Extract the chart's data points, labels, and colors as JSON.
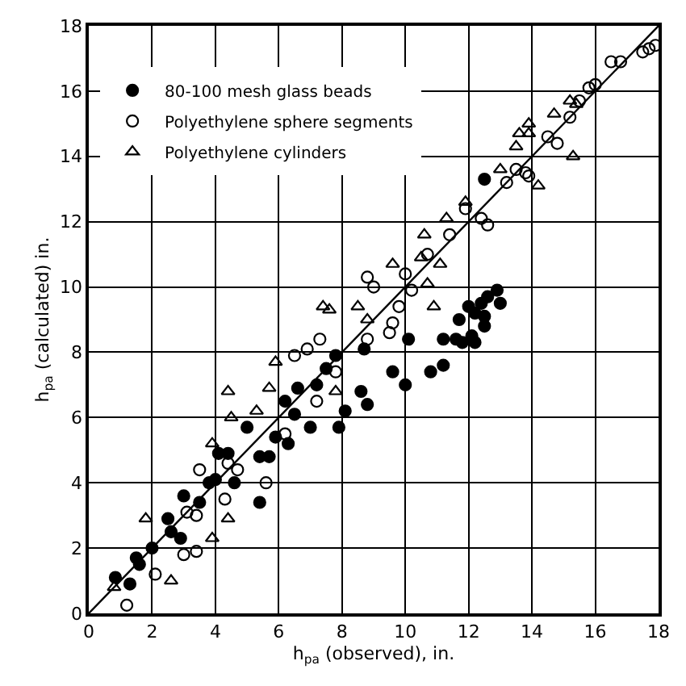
{
  "chart_data": {
    "type": "scatter",
    "xlabel": "h$_{pa}$ (observed), in.",
    "ylabel": "h$_{pa}$ (calculated) in.",
    "xlim": [
      0,
      18
    ],
    "ylim": [
      0,
      18
    ],
    "xticks": [
      0,
      2,
      4,
      6,
      8,
      10,
      12,
      14,
      16,
      18
    ],
    "yticks": [
      0,
      2,
      4,
      6,
      8,
      10,
      12,
      14,
      16,
      18
    ],
    "grid": true,
    "legend": "top left",
    "series": [
      {
        "name": "80-100 mesh glass beads",
        "color": "#000000",
        "marker": "circle",
        "x": [
          0.84,
          1.3,
          1.5,
          1.6,
          2.0,
          2.5,
          2.6,
          2.9,
          3.0,
          3.5,
          3.8,
          4.0,
          4.1,
          4.4,
          4.6,
          5.0,
          5.4,
          5.4,
          5.7,
          5.9,
          6.2,
          6.3,
          6.5,
          6.6,
          7.0,
          7.2,
          7.5,
          7.8,
          7.9,
          8.1,
          8.6,
          8.8,
          8.7,
          9.6,
          10.0,
          10.1,
          10.8,
          11.2,
          11.2,
          11.8,
          12.2,
          12.5,
          11.7,
          12.0,
          12.2,
          12.4,
          12.6,
          12.9,
          13.0,
          12.5,
          12.1,
          11.6,
          12.5
        ],
        "values": [
          1.1,
          0.9,
          1.7,
          1.5,
          2.0,
          2.9,
          2.5,
          2.3,
          3.6,
          3.4,
          4.0,
          4.1,
          4.9,
          4.9,
          4.0,
          5.7,
          4.8,
          3.4,
          4.8,
          5.4,
          6.5,
          5.2,
          6.1,
          6.9,
          5.7,
          7.0,
          7.5,
          7.9,
          5.7,
          6.2,
          6.8,
          6.4,
          8.1,
          7.4,
          7.0,
          8.4,
          7.4,
          7.6,
          8.4,
          8.3,
          8.3,
          8.8,
          9.0,
          9.4,
          9.2,
          9.5,
          9.7,
          9.9,
          9.5,
          9.1,
          8.5,
          8.4,
          13.3
        ]
      },
      {
        "name": "Polyethylene sphere segments",
        "color": "#000000",
        "marker": "circle-open",
        "x": [
          1.2,
          2.1,
          3.0,
          3.4,
          3.1,
          3.4,
          3.5,
          4.3,
          4.4,
          4.7,
          5.6,
          6.2,
          7.2,
          6.5,
          6.9,
          7.3,
          7.8,
          9.5,
          8.8,
          9.6,
          9.8,
          8.8,
          9.0,
          10.0,
          10.2,
          10.7,
          11.4,
          11.9,
          12.4,
          12.6,
          13.2,
          13.5,
          13.8,
          13.9,
          14.5,
          14.8,
          15.2,
          15.5,
          15.8,
          16.0,
          16.5,
          16.8,
          17.5,
          17.7,
          17.9
        ],
        "values": [
          0.25,
          1.2,
          1.8,
          1.9,
          3.1,
          3.0,
          4.4,
          3.5,
          4.6,
          4.4,
          4.0,
          5.5,
          6.5,
          7.9,
          8.1,
          8.4,
          7.4,
          8.6,
          8.4,
          8.9,
          9.4,
          10.3,
          10.0,
          10.4,
          9.9,
          11.0,
          11.6,
          12.4,
          12.1,
          11.9,
          13.2,
          13.6,
          13.5,
          13.4,
          14.6,
          14.4,
          15.2,
          15.7,
          16.1,
          16.2,
          16.9,
          16.9,
          17.2,
          17.3,
          17.4
        ]
      },
      {
        "name": "Polyethylene cylinders",
        "color": "#000000",
        "marker": "triangle-open",
        "x": [
          0.8,
          1.8,
          2.6,
          3.9,
          3.9,
          4.4,
          4.4,
          4.5,
          5.3,
          5.7,
          5.9,
          7.8,
          7.6,
          7.4,
          8.8,
          8.5,
          9.6,
          10.7,
          10.5,
          10.9,
          11.1,
          10.6,
          11.3,
          11.9,
          13.0,
          13.5,
          13.6,
          13.9,
          13.9,
          14.7,
          15.3,
          14.2,
          15.2,
          15.4
        ],
        "values": [
          0.8,
          2.9,
          1.0,
          2.3,
          5.2,
          2.9,
          6.8,
          6.0,
          6.2,
          6.9,
          7.7,
          6.8,
          9.3,
          9.4,
          9.0,
          9.4,
          10.7,
          10.1,
          10.9,
          9.4,
          10.7,
          11.6,
          12.1,
          12.6,
          13.6,
          14.3,
          14.7,
          15.0,
          14.7,
          15.3,
          14.0,
          13.1,
          15.7,
          15.6
        ]
      },
      {
        "type": "line",
        "color": "#000000",
        "marker": "none",
        "line_style": "solid",
        "x": [
          0,
          18
        ],
        "values": [
          0,
          18
        ]
      }
    ]
  }
}
